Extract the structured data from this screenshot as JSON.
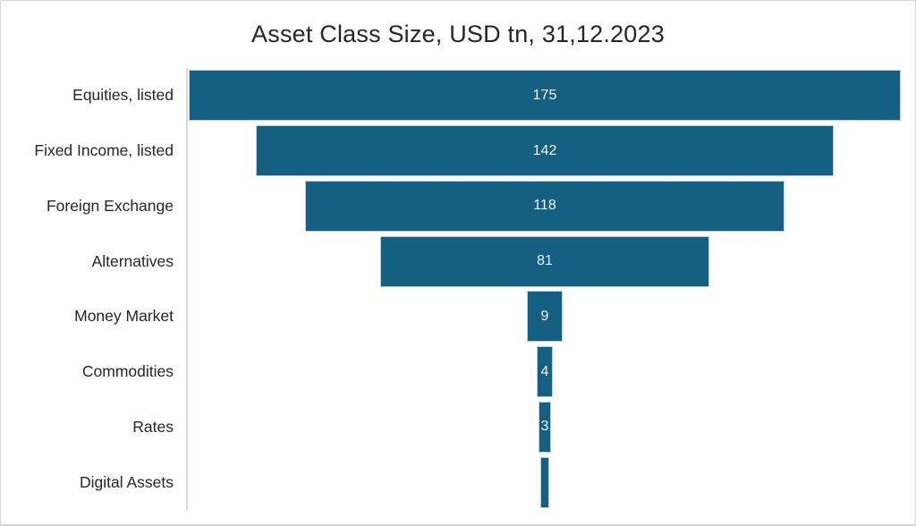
{
  "canvas": {
    "background": "#ffffff",
    "border_color": "#d6d6d6"
  },
  "chart_data": {
    "type": "bar",
    "subtype": "funnel",
    "title": "Asset Class Size, USD tn, 31,12.2023",
    "categories": [
      "Equities, listed",
      "Fixed Income, listed",
      "Foreign Exchange",
      "Alternatives",
      "Money Market",
      "Commodities",
      "Rates",
      "Digital Assets"
    ],
    "values": [
      175,
      142,
      118,
      81,
      9,
      4,
      3,
      2
    ],
    "data_labels": [
      "175",
      "142",
      "118",
      "81",
      "9",
      "4",
      "3",
      ""
    ],
    "value_axis_max": 175,
    "xlabel": "",
    "ylabel": "",
    "legend_position": "none",
    "grid": false,
    "colors": {
      "bar_fill": "#156082",
      "bar_outline": "#b7d2de",
      "data_label": "#f2f2f2",
      "category_label": "#262626",
      "title": "#262626",
      "axis_line": "#d9d9d9"
    }
  }
}
